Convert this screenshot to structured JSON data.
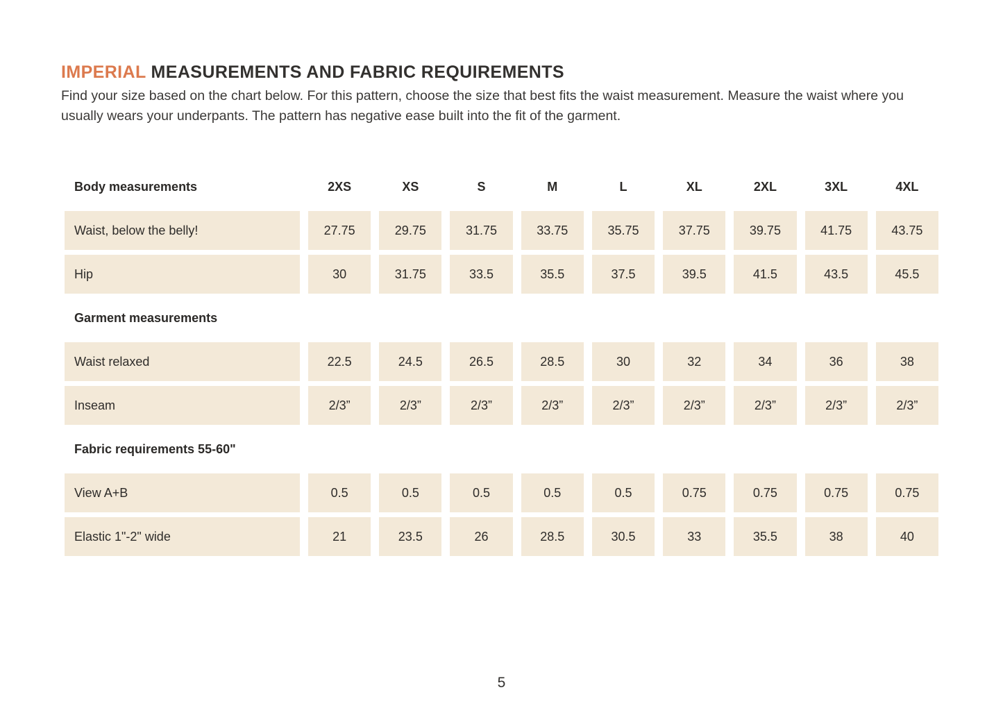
{
  "header": {
    "title_highlight": "IMPERIAL",
    "title_rest": " MEASUREMENTS AND FABRIC REQUIREMENTS",
    "intro": "Find your size based on the chart below. For this pattern, choose the size that best fits the waist measurement. Measure the waist where you usually wears your underpants. The pattern has negative ease built into the fit of the garment."
  },
  "colors": {
    "accent_orange": "#dc7a4e",
    "cell_beige": "#f3e9d8",
    "text_dark": "#2e2c2a"
  },
  "table": {
    "header": {
      "label": "Body measurements",
      "columns": [
        "2XS",
        "XS",
        "S",
        "M",
        "L",
        "XL",
        "2XL",
        "3XL",
        "4XL"
      ]
    },
    "groups": [
      {
        "heading": null,
        "rows": [
          {
            "label": "Waist, below the belly!",
            "values": [
              "27.75",
              "29.75",
              "31.75",
              "33.75",
              "35.75",
              "37.75",
              "39.75",
              "41.75",
              "43.75"
            ]
          },
          {
            "label": "Hip",
            "values": [
              "30",
              "31.75",
              "33.5",
              "35.5",
              "37.5",
              "39.5",
              "41.5",
              "43.5",
              "45.5"
            ]
          }
        ]
      },
      {
        "heading": "Garment measurements",
        "rows": [
          {
            "label": "Waist relaxed",
            "values": [
              "22.5",
              "24.5",
              "26.5",
              "28.5",
              "30",
              "32",
              "34",
              "36",
              "38"
            ]
          },
          {
            "label": "Inseam",
            "values": [
              "2/3”",
              "2/3”",
              "2/3”",
              "2/3”",
              "2/3”",
              "2/3”",
              "2/3”",
              "2/3”",
              "2/3”"
            ]
          }
        ]
      },
      {
        "heading": "Fabric requirements 55-60\"",
        "rows": [
          {
            "label": "View A+B",
            "values": [
              "0.5",
              "0.5",
              "0.5",
              "0.5",
              "0.5",
              "0.75",
              "0.75",
              "0.75",
              "0.75"
            ]
          },
          {
            "label": "Elastic 1\"-2\" wide",
            "values": [
              "21",
              "23.5",
              "26",
              "28.5",
              "30.5",
              "33",
              "35.5",
              "38",
              "40"
            ]
          }
        ]
      }
    ]
  },
  "footer": {
    "page_number": "5"
  }
}
